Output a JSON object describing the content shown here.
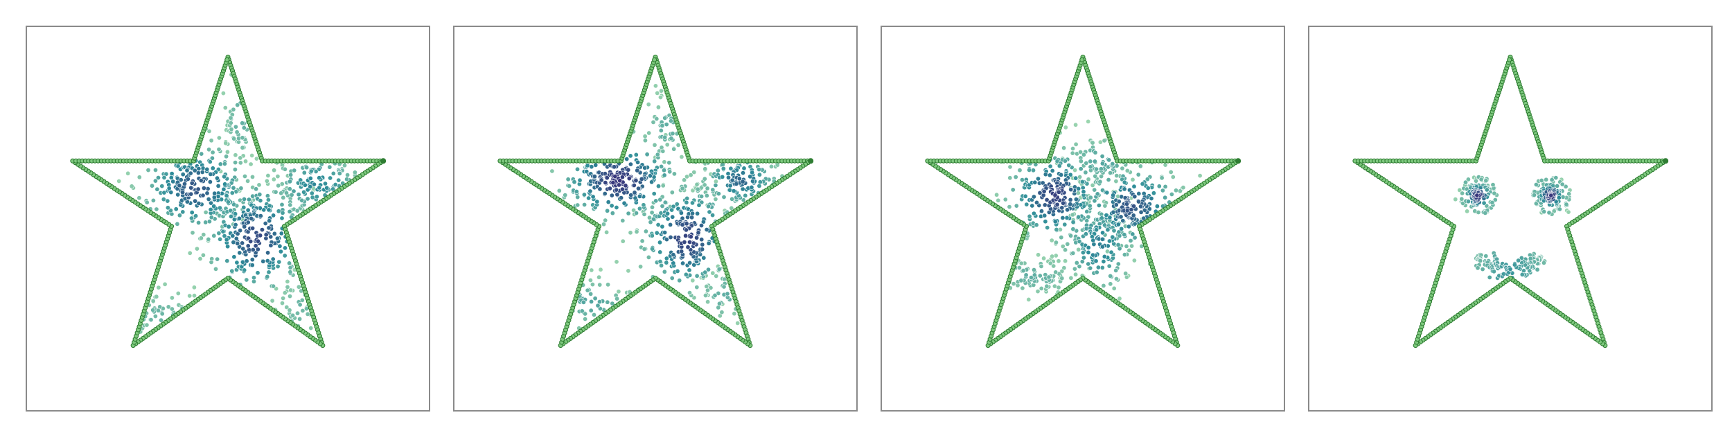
{
  "figure": {
    "panel_count": 4
  },
  "colors": {
    "frame": "#8a8a8a",
    "boundary_fill": "#7fc97f",
    "boundary_edge": "#2e7d32",
    "density_low": "#9fd8b0",
    "density_mid": "#2e8d99",
    "density_high": "#3b2a78",
    "point_edge": "#ffffff"
  },
  "chart_data": [
    {
      "type": "scatter",
      "title": "",
      "xlabel": "",
      "ylabel": "",
      "grid": false,
      "axes_ticks": "none",
      "coord_range": [
        [
          0,
          1
        ],
        [
          0,
          1
        ]
      ],
      "boundary": {
        "shape": "five-point-star",
        "vertices": [
          [
            0.5,
            0.92
          ],
          [
            0.585,
            0.65
          ],
          [
            0.885,
            0.65
          ],
          [
            0.64,
            0.48
          ],
          [
            0.735,
            0.17
          ],
          [
            0.5,
            0.345
          ],
          [
            0.265,
            0.17
          ],
          [
            0.36,
            0.48
          ],
          [
            0.115,
            0.65
          ],
          [
            0.415,
            0.65
          ]
        ],
        "points_per_edge": 38
      },
      "clusters": [
        {
          "center": [
            0.42,
            0.58
          ],
          "spread": [
            0.07,
            0.06
          ],
          "count": 260,
          "density": 0.75
        },
        {
          "center": [
            0.57,
            0.45
          ],
          "spread": [
            0.065,
            0.075
          ],
          "count": 280,
          "density": 0.8
        },
        {
          "center": [
            0.72,
            0.59
          ],
          "spread": [
            0.06,
            0.04
          ],
          "count": 150,
          "density": 0.5
        },
        {
          "center": [
            0.53,
            0.76
          ],
          "spread": [
            0.02,
            0.06
          ],
          "count": 60,
          "density": 0.25
        },
        {
          "center": [
            0.33,
            0.25
          ],
          "spread": [
            0.06,
            0.035
          ],
          "count": 90,
          "density": 0.2
        },
        {
          "center": [
            0.68,
            0.27
          ],
          "spread": [
            0.03,
            0.04
          ],
          "count": 50,
          "density": 0.2
        }
      ]
    },
    {
      "type": "scatter",
      "title": "",
      "xlabel": "",
      "ylabel": "",
      "grid": false,
      "axes_ticks": "none",
      "coord_range": [
        [
          0,
          1
        ],
        [
          0,
          1
        ]
      ],
      "boundary": {
        "shape": "five-point-star",
        "vertices": [
          [
            0.5,
            0.92
          ],
          [
            0.585,
            0.65
          ],
          [
            0.885,
            0.65
          ],
          [
            0.64,
            0.48
          ],
          [
            0.735,
            0.17
          ],
          [
            0.5,
            0.345
          ],
          [
            0.265,
            0.17
          ],
          [
            0.36,
            0.48
          ],
          [
            0.115,
            0.65
          ],
          [
            0.415,
            0.65
          ]
        ],
        "points_per_edge": 38
      },
      "clusters": [
        {
          "center": [
            0.41,
            0.6
          ],
          "spread": [
            0.075,
            0.055
          ],
          "count": 280,
          "density": 0.9
        },
        {
          "center": [
            0.58,
            0.45
          ],
          "spread": [
            0.06,
            0.07
          ],
          "count": 260,
          "density": 0.85
        },
        {
          "center": [
            0.71,
            0.6
          ],
          "spread": [
            0.05,
            0.035
          ],
          "count": 140,
          "density": 0.65
        },
        {
          "center": [
            0.53,
            0.73
          ],
          "spread": [
            0.03,
            0.05
          ],
          "count": 60,
          "density": 0.25
        },
        {
          "center": [
            0.34,
            0.28
          ],
          "spread": [
            0.06,
            0.035
          ],
          "count": 90,
          "density": 0.3
        },
        {
          "center": [
            0.67,
            0.3
          ],
          "spread": [
            0.035,
            0.035
          ],
          "count": 50,
          "density": 0.25
        }
      ]
    },
    {
      "type": "scatter",
      "title": "",
      "xlabel": "",
      "ylabel": "",
      "grid": false,
      "axes_ticks": "none",
      "coord_range": [
        [
          0,
          1
        ],
        [
          0,
          1
        ]
      ],
      "boundary": {
        "shape": "five-point-star",
        "vertices": [
          [
            0.5,
            0.92
          ],
          [
            0.585,
            0.65
          ],
          [
            0.885,
            0.65
          ],
          [
            0.64,
            0.48
          ],
          [
            0.735,
            0.17
          ],
          [
            0.5,
            0.345
          ],
          [
            0.265,
            0.17
          ],
          [
            0.36,
            0.48
          ],
          [
            0.115,
            0.65
          ],
          [
            0.415,
            0.65
          ]
        ],
        "points_per_edge": 38
      },
      "clusters": [
        {
          "center": [
            0.43,
            0.56
          ],
          "spread": [
            0.06,
            0.06
          ],
          "count": 240,
          "density": 0.85
        },
        {
          "center": [
            0.62,
            0.53
          ],
          "spread": [
            0.065,
            0.055
          ],
          "count": 240,
          "density": 0.75
        },
        {
          "center": [
            0.54,
            0.43
          ],
          "spread": [
            0.045,
            0.06
          ],
          "count": 160,
          "density": 0.55
        },
        {
          "center": [
            0.55,
            0.65
          ],
          "spread": [
            0.05,
            0.035
          ],
          "count": 90,
          "density": 0.3
        },
        {
          "center": [
            0.38,
            0.35
          ],
          "spread": [
            0.055,
            0.025
          ],
          "count": 100,
          "density": 0.25
        }
      ]
    },
    {
      "type": "scatter",
      "title": "",
      "xlabel": "",
      "ylabel": "",
      "grid": false,
      "axes_ticks": "none",
      "coord_range": [
        [
          0,
          1
        ],
        [
          0,
          1
        ]
      ],
      "boundary": {
        "shape": "five-point-star",
        "vertices": [
          [
            0.5,
            0.92
          ],
          [
            0.585,
            0.65
          ],
          [
            0.885,
            0.65
          ],
          [
            0.64,
            0.48
          ],
          [
            0.735,
            0.17
          ],
          [
            0.5,
            0.345
          ],
          [
            0.265,
            0.17
          ],
          [
            0.36,
            0.48
          ],
          [
            0.115,
            0.65
          ],
          [
            0.415,
            0.65
          ]
        ],
        "points_per_edge": 38
      },
      "clusters": [
        {
          "center": [
            0.42,
            0.56
          ],
          "spread": [
            0.018,
            0.018
          ],
          "count": 90,
          "density": 0.9
        },
        {
          "center": [
            0.6,
            0.56
          ],
          "spread": [
            0.018,
            0.018
          ],
          "count": 90,
          "density": 0.9
        }
      ],
      "rings": [
        {
          "center": [
            0.42,
            0.56
          ],
          "radius": 0.045,
          "count": 40,
          "density": 0.15
        },
        {
          "center": [
            0.6,
            0.56
          ],
          "radius": 0.045,
          "count": 40,
          "density": 0.15
        }
      ],
      "arcs": [
        {
          "center": [
            0.5,
            0.5
          ],
          "radius": 0.13,
          "start_deg": 230,
          "end_deg": 310,
          "thickness": 0.012,
          "count": 120,
          "density": 0.45
        }
      ]
    }
  ]
}
